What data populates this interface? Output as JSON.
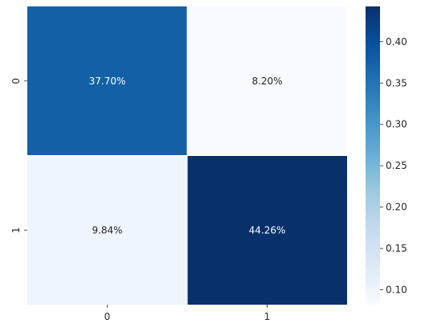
{
  "chart_data": {
    "type": "heatmap",
    "title": "",
    "xlabel": "",
    "ylabel": "",
    "x_categories": [
      "0",
      "1"
    ],
    "y_categories": [
      "0",
      "1"
    ],
    "values": [
      [
        0.377,
        0.082
      ],
      [
        0.0984,
        0.4426
      ]
    ],
    "annotations": [
      [
        "37.70%",
        "8.20%"
      ],
      [
        "9.84%",
        "44.26%"
      ]
    ],
    "colormap": "Blues",
    "colorbar": {
      "range": [
        0.082,
        0.4426
      ],
      "ticks": [
        0.1,
        0.15,
        0.2,
        0.25,
        0.3,
        0.35,
        0.4
      ],
      "tick_labels": [
        "0.10",
        "0.15",
        "0.20",
        "0.25",
        "0.30",
        "0.35",
        "0.40"
      ]
    },
    "grid": false,
    "cell_separator_color": "#ffffff"
  }
}
